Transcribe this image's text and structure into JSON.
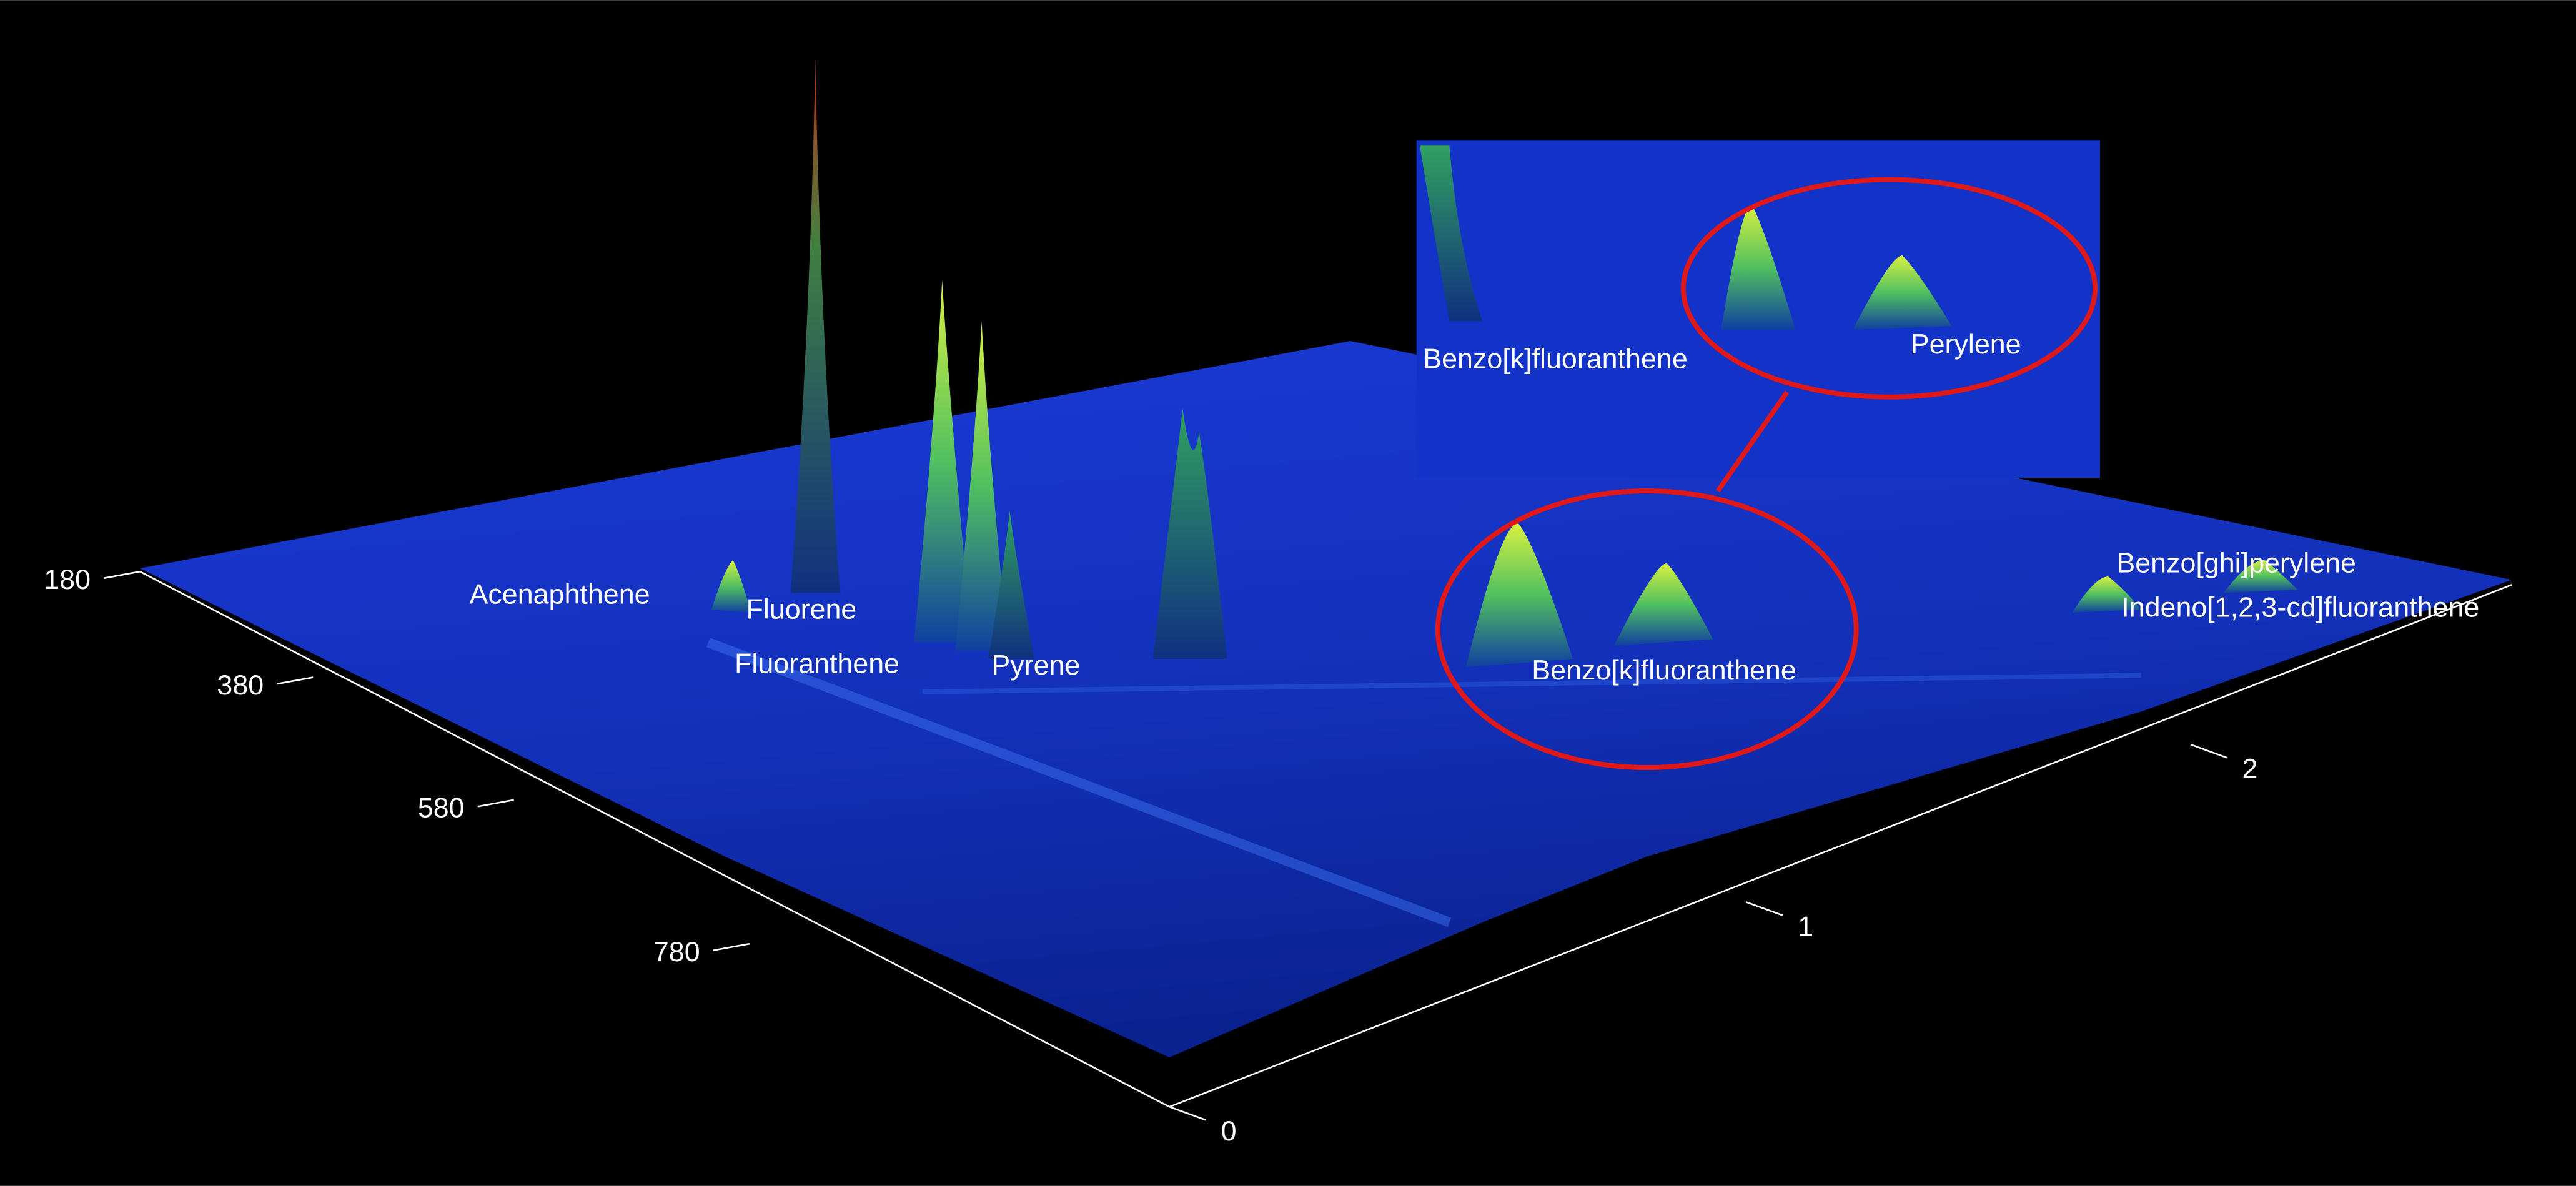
{
  "chart_data": {
    "type": "surface",
    "xticks": [
      180,
      380,
      580,
      780
    ],
    "yticks": [
      0,
      1,
      2
    ],
    "annotations": [
      "Acenaphthene",
      "Fluorene",
      "Fluoranthene",
      "Pyrene",
      "Benzo[k]fluoranthene",
      "Benzo[ghi]perylene",
      "Indeno[1,2,3-cd]fluoranthene"
    ],
    "inset_annotations": [
      "Benzo[k]fluoranthene",
      "Perylene"
    ]
  }
}
